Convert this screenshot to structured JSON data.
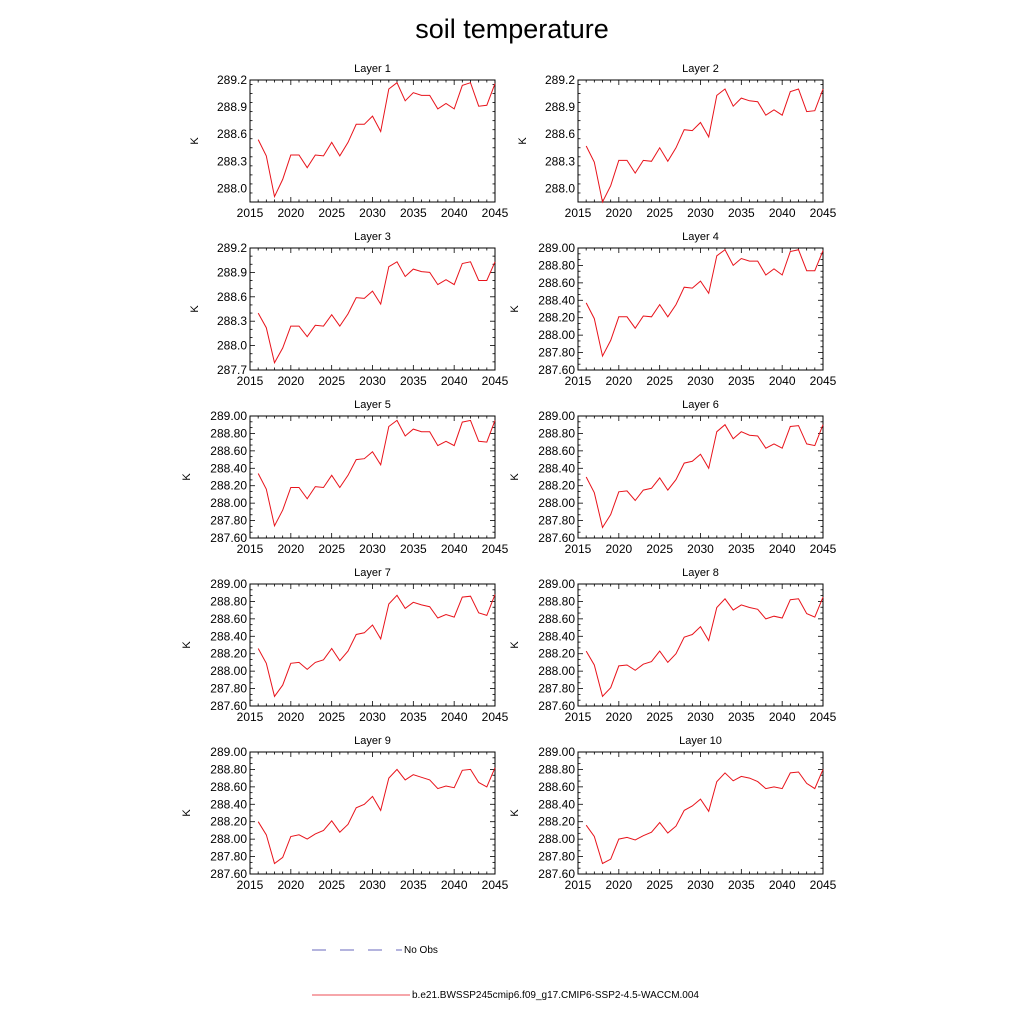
{
  "title": "soil temperature",
  "panel_layout": {
    "columns": 2,
    "rows": 5
  },
  "colors": {
    "model": "#e8131b",
    "obs": "#3a3aa8",
    "axis": "#000000",
    "background": "#ffffff"
  },
  "legend": [
    {
      "label": "No Obs",
      "style": "dashed",
      "color": "#3a3aa8"
    },
    {
      "label": "b.e21.BWSSP245cmip6.f09_g17.CMIP6-SSP2-4.5-WACCM.004",
      "style": "solid",
      "color": "#e8131b"
    }
  ],
  "chart_data": [
    {
      "type": "line",
      "title": "Layer 1",
      "ylabel": "K",
      "xlim": [
        2015,
        2045
      ],
      "ylim": [
        287.85,
        289.2
      ],
      "xticks": [
        "2015",
        "2020",
        "2025",
        "2030",
        "2035",
        "2040",
        "2045"
      ],
      "yticks": [
        "288.0",
        "288.3",
        "288.6",
        "288.9",
        "289.2"
      ],
      "ytick_values": [
        288.0,
        288.3,
        288.6,
        288.9,
        289.2
      ],
      "series": [
        {
          "x": [
            2016,
            2017,
            2018,
            2019,
            2020,
            2021,
            2022,
            2023,
            2024,
            2025,
            2026,
            2027,
            2028,
            2029,
            2030,
            2031,
            2032,
            2033,
            2034,
            2035,
            2036,
            2037,
            2038,
            2039,
            2040,
            2041,
            2042,
            2043,
            2044,
            2045
          ],
          "values": [
            288.54,
            288.36,
            287.91,
            288.1,
            288.37,
            288.37,
            288.23,
            288.37,
            288.36,
            288.51,
            288.36,
            288.51,
            288.71,
            288.71,
            288.8,
            288.63,
            289.1,
            289.17,
            288.97,
            289.06,
            289.03,
            289.03,
            288.88,
            288.94,
            288.88,
            289.14,
            289.17,
            288.91,
            288.92,
            289.16
          ]
        }
      ]
    },
    {
      "type": "line",
      "title": "Layer 2",
      "ylabel": "K",
      "xlim": [
        2015,
        2045
      ],
      "ylim": [
        287.85,
        289.2
      ],
      "xticks": [
        "2015",
        "2020",
        "2025",
        "2030",
        "2035",
        "2040",
        "2045"
      ],
      "yticks": [
        "288.0",
        "288.3",
        "288.6",
        "288.9",
        "289.2"
      ],
      "ytick_values": [
        288.0,
        288.3,
        288.6,
        288.9,
        289.2
      ],
      "series": [
        {
          "x": [
            2016,
            2017,
            2018,
            2019,
            2020,
            2021,
            2022,
            2023,
            2024,
            2025,
            2026,
            2027,
            2028,
            2029,
            2030,
            2031,
            2032,
            2033,
            2034,
            2035,
            2036,
            2037,
            2038,
            2039,
            2040,
            2041,
            2042,
            2043,
            2044,
            2045
          ],
          "values": [
            288.47,
            288.29,
            287.85,
            288.03,
            288.31,
            288.31,
            288.17,
            288.31,
            288.3,
            288.45,
            288.3,
            288.45,
            288.65,
            288.64,
            288.73,
            288.57,
            289.03,
            289.1,
            288.91,
            289.0,
            288.97,
            288.96,
            288.81,
            288.87,
            288.81,
            289.07,
            289.1,
            288.85,
            288.86,
            289.1
          ]
        }
      ]
    },
    {
      "type": "line",
      "title": "Layer 3",
      "ylabel": "K",
      "xlim": [
        2015,
        2045
      ],
      "ylim": [
        287.7,
        289.2
      ],
      "xticks": [
        "2015",
        "2020",
        "2025",
        "2030",
        "2035",
        "2040",
        "2045"
      ],
      "yticks": [
        "287.7",
        "288.0",
        "288.3",
        "288.6",
        "288.9",
        "289.2"
      ],
      "ytick_values": [
        287.7,
        288.0,
        288.3,
        288.6,
        288.9,
        289.2
      ],
      "series": [
        {
          "x": [
            2016,
            2017,
            2018,
            2019,
            2020,
            2021,
            2022,
            2023,
            2024,
            2025,
            2026,
            2027,
            2028,
            2029,
            2030,
            2031,
            2032,
            2033,
            2034,
            2035,
            2036,
            2037,
            2038,
            2039,
            2040,
            2041,
            2042,
            2043,
            2044,
            2045
          ],
          "values": [
            288.4,
            288.22,
            287.79,
            287.97,
            288.24,
            288.24,
            288.11,
            288.25,
            288.24,
            288.38,
            288.24,
            288.39,
            288.59,
            288.58,
            288.67,
            288.51,
            288.97,
            289.03,
            288.85,
            288.94,
            288.91,
            288.9,
            288.75,
            288.81,
            288.75,
            289.01,
            289.03,
            288.8,
            288.8,
            289.03
          ]
        }
      ]
    },
    {
      "type": "line",
      "title": "Layer 4",
      "ylabel": "K",
      "xlim": [
        2015,
        2045
      ],
      "ylim": [
        287.6,
        289.0
      ],
      "xticks": [
        "2015",
        "2020",
        "2025",
        "2030",
        "2035",
        "2040",
        "2045"
      ],
      "yticks": [
        "287.60",
        "287.80",
        "288.00",
        "288.20",
        "288.40",
        "288.60",
        "288.80",
        "289.00"
      ],
      "ytick_values": [
        287.6,
        287.8,
        288.0,
        288.2,
        288.4,
        288.6,
        288.8,
        289.0
      ],
      "series": [
        {
          "x": [
            2016,
            2017,
            2018,
            2019,
            2020,
            2021,
            2022,
            2023,
            2024,
            2025,
            2026,
            2027,
            2028,
            2029,
            2030,
            2031,
            2032,
            2033,
            2034,
            2035,
            2036,
            2037,
            2038,
            2039,
            2040,
            2041,
            2042,
            2043,
            2044,
            2045
          ],
          "values": [
            288.37,
            288.19,
            287.76,
            287.94,
            288.21,
            288.21,
            288.08,
            288.22,
            288.21,
            288.35,
            288.21,
            288.35,
            288.55,
            288.54,
            288.62,
            288.48,
            288.91,
            288.98,
            288.8,
            288.88,
            288.85,
            288.85,
            288.69,
            288.76,
            288.69,
            288.96,
            288.98,
            288.74,
            288.74,
            288.97
          ]
        }
      ]
    },
    {
      "type": "line",
      "title": "Layer 5",
      "ylabel": "K",
      "xlim": [
        2015,
        2045
      ],
      "ylim": [
        287.6,
        289.0
      ],
      "xticks": [
        "2015",
        "2020",
        "2025",
        "2030",
        "2035",
        "2040",
        "2045"
      ],
      "yticks": [
        "287.60",
        "287.80",
        "288.00",
        "288.20",
        "288.40",
        "288.60",
        "288.80",
        "289.00"
      ],
      "ytick_values": [
        287.6,
        287.8,
        288.0,
        288.2,
        288.4,
        288.6,
        288.8,
        289.0
      ],
      "series": [
        {
          "x": [
            2016,
            2017,
            2018,
            2019,
            2020,
            2021,
            2022,
            2023,
            2024,
            2025,
            2026,
            2027,
            2028,
            2029,
            2030,
            2031,
            2032,
            2033,
            2034,
            2035,
            2036,
            2037,
            2038,
            2039,
            2040,
            2041,
            2042,
            2043,
            2044,
            2045
          ],
          "values": [
            288.34,
            288.16,
            287.74,
            287.92,
            288.18,
            288.18,
            288.05,
            288.19,
            288.18,
            288.32,
            288.18,
            288.32,
            288.5,
            288.51,
            288.59,
            288.44,
            288.88,
            288.95,
            288.77,
            288.85,
            288.82,
            288.82,
            288.66,
            288.71,
            288.66,
            288.93,
            288.95,
            288.71,
            288.7,
            288.95
          ]
        }
      ]
    },
    {
      "type": "line",
      "title": "Layer 6",
      "ylabel": "K",
      "xlim": [
        2015,
        2045
      ],
      "ylim": [
        287.6,
        289.0
      ],
      "xticks": [
        "2015",
        "2020",
        "2025",
        "2030",
        "2035",
        "2040",
        "2045"
      ],
      "yticks": [
        "287.60",
        "287.80",
        "288.00",
        "288.20",
        "288.40",
        "288.60",
        "288.80",
        "289.00"
      ],
      "ytick_values": [
        287.6,
        287.8,
        288.0,
        288.2,
        288.4,
        288.6,
        288.8,
        289.0
      ],
      "series": [
        {
          "x": [
            2016,
            2017,
            2018,
            2019,
            2020,
            2021,
            2022,
            2023,
            2024,
            2025,
            2026,
            2027,
            2028,
            2029,
            2030,
            2031,
            2032,
            2033,
            2034,
            2035,
            2036,
            2037,
            2038,
            2039,
            2040,
            2041,
            2042,
            2043,
            2044,
            2045
          ],
          "values": [
            288.3,
            288.12,
            287.72,
            287.87,
            288.13,
            288.14,
            288.03,
            288.15,
            288.17,
            288.29,
            288.15,
            288.27,
            288.46,
            288.48,
            288.56,
            288.4,
            288.82,
            288.9,
            288.74,
            288.82,
            288.78,
            288.77,
            288.63,
            288.68,
            288.63,
            288.88,
            288.89,
            288.68,
            288.66,
            288.9
          ]
        }
      ]
    },
    {
      "type": "line",
      "title": "Layer 7",
      "ylabel": "K",
      "xlim": [
        2015,
        2045
      ],
      "ylim": [
        287.6,
        289.0
      ],
      "xticks": [
        "2015",
        "2020",
        "2025",
        "2030",
        "2035",
        "2040",
        "2045"
      ],
      "yticks": [
        "287.60",
        "287.80",
        "288.00",
        "288.20",
        "288.40",
        "288.60",
        "288.80",
        "289.00"
      ],
      "ytick_values": [
        287.6,
        287.8,
        288.0,
        288.2,
        288.4,
        288.6,
        288.8,
        289.0
      ],
      "series": [
        {
          "x": [
            2016,
            2017,
            2018,
            2019,
            2020,
            2021,
            2022,
            2023,
            2024,
            2025,
            2026,
            2027,
            2028,
            2029,
            2030,
            2031,
            2032,
            2033,
            2034,
            2035,
            2036,
            2037,
            2038,
            2039,
            2040,
            2041,
            2042,
            2043,
            2044,
            2045
          ],
          "values": [
            288.26,
            288.09,
            287.71,
            287.84,
            288.09,
            288.1,
            288.02,
            288.1,
            288.13,
            288.26,
            288.12,
            288.23,
            288.42,
            288.44,
            288.53,
            288.37,
            288.77,
            288.87,
            288.72,
            288.79,
            288.76,
            288.74,
            288.61,
            288.65,
            288.62,
            288.85,
            288.86,
            288.67,
            288.64,
            288.88
          ]
        }
      ]
    },
    {
      "type": "line",
      "title": "Layer 8",
      "ylabel": "K",
      "xlim": [
        2015,
        2045
      ],
      "ylim": [
        287.6,
        289.0
      ],
      "xticks": [
        "2015",
        "2020",
        "2025",
        "2030",
        "2035",
        "2040",
        "2045"
      ],
      "yticks": [
        "287.60",
        "287.80",
        "288.00",
        "288.20",
        "288.40",
        "288.60",
        "288.80",
        "289.00"
      ],
      "ytick_values": [
        287.6,
        287.8,
        288.0,
        288.2,
        288.4,
        288.6,
        288.8,
        289.0
      ],
      "series": [
        {
          "x": [
            2016,
            2017,
            2018,
            2019,
            2020,
            2021,
            2022,
            2023,
            2024,
            2025,
            2026,
            2027,
            2028,
            2029,
            2030,
            2031,
            2032,
            2033,
            2034,
            2035,
            2036,
            2037,
            2038,
            2039,
            2040,
            2041,
            2042,
            2043,
            2044,
            2045
          ],
          "values": [
            288.23,
            288.07,
            287.71,
            287.81,
            288.06,
            288.07,
            288.01,
            288.08,
            288.11,
            288.23,
            288.1,
            288.2,
            288.39,
            288.42,
            288.51,
            288.35,
            288.73,
            288.83,
            288.7,
            288.76,
            288.73,
            288.71,
            288.6,
            288.63,
            288.61,
            288.82,
            288.83,
            288.66,
            288.62,
            288.85
          ]
        }
      ]
    },
    {
      "type": "line",
      "title": "Layer 9",
      "ylabel": "K",
      "xlim": [
        2015,
        2045
      ],
      "ylim": [
        287.6,
        289.0
      ],
      "xticks": [
        "2015",
        "2020",
        "2025",
        "2030",
        "2035",
        "2040",
        "2045"
      ],
      "yticks": [
        "287.60",
        "287.80",
        "288.00",
        "288.20",
        "288.40",
        "288.60",
        "288.80",
        "289.00"
      ],
      "ytick_values": [
        287.6,
        287.8,
        288.0,
        288.2,
        288.4,
        288.6,
        288.8,
        289.0
      ],
      "series": [
        {
          "x": [
            2016,
            2017,
            2018,
            2019,
            2020,
            2021,
            2022,
            2023,
            2024,
            2025,
            2026,
            2027,
            2028,
            2029,
            2030,
            2031,
            2032,
            2033,
            2034,
            2035,
            2036,
            2037,
            2038,
            2039,
            2040,
            2041,
            2042,
            2043,
            2044,
            2045
          ],
          "values": [
            288.2,
            288.05,
            287.72,
            287.79,
            288.03,
            288.05,
            288.0,
            288.06,
            288.1,
            288.21,
            288.08,
            288.17,
            288.36,
            288.4,
            288.49,
            288.33,
            288.7,
            288.8,
            288.68,
            288.74,
            288.71,
            288.68,
            288.58,
            288.61,
            288.59,
            288.79,
            288.8,
            288.65,
            288.6,
            288.82
          ]
        }
      ]
    },
    {
      "type": "line",
      "title": "Layer 10",
      "ylabel": "K",
      "xlim": [
        2015,
        2045
      ],
      "ylim": [
        287.6,
        289.0
      ],
      "xticks": [
        "2015",
        "2020",
        "2025",
        "2030",
        "2035",
        "2040",
        "2045"
      ],
      "yticks": [
        "287.60",
        "287.80",
        "288.00",
        "288.20",
        "288.40",
        "288.60",
        "288.80",
        "289.00"
      ],
      "ytick_values": [
        287.6,
        287.8,
        288.0,
        288.2,
        288.4,
        288.6,
        288.8,
        289.0
      ],
      "series": [
        {
          "x": [
            2016,
            2017,
            2018,
            2019,
            2020,
            2021,
            2022,
            2023,
            2024,
            2025,
            2026,
            2027,
            2028,
            2029,
            2030,
            2031,
            2032,
            2033,
            2034,
            2035,
            2036,
            2037,
            2038,
            2039,
            2040,
            2041,
            2042,
            2043,
            2044,
            2045
          ],
          "values": [
            288.16,
            288.03,
            287.72,
            287.77,
            288.0,
            288.02,
            287.99,
            288.04,
            288.08,
            288.19,
            288.07,
            288.15,
            288.33,
            288.38,
            288.46,
            288.32,
            288.66,
            288.76,
            288.67,
            288.72,
            288.7,
            288.66,
            288.58,
            288.6,
            288.58,
            288.76,
            288.77,
            288.64,
            288.58,
            288.8
          ]
        }
      ]
    }
  ]
}
